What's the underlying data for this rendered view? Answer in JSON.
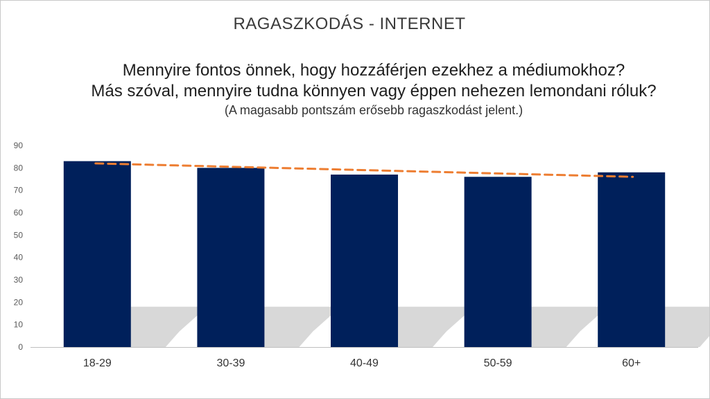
{
  "chart_data": {
    "type": "bar",
    "title": "RAGASZKODÁS - INTERNET",
    "subtitle_lines": [
      "Mennyire fontos önnek, hogy hozzáférjen ezekhez a médiumokhoz?",
      "Más szóval, mennyire tudna könnyen vagy éppen nehezen lemondani róluk?"
    ],
    "note": "(A magasabb pontszám erősebb ragaszkodást jelent.)",
    "categories": [
      "18-29",
      "30-39",
      "40-49",
      "50-59",
      "60+"
    ],
    "values": [
      83,
      80,
      77,
      76,
      78
    ],
    "trendline": {
      "style": "dashed",
      "start": 82,
      "end": 76
    },
    "ylim": [
      0,
      90
    ],
    "yticks": [
      "0",
      "10",
      "20",
      "30",
      "40",
      "50",
      "60",
      "70",
      "80",
      "90"
    ],
    "grid": false,
    "legend": "none",
    "colors": {
      "bar": "#00205b",
      "trend": "#ed7d31",
      "shadow": "#c8c8c8",
      "axis": "#bfbfbf"
    }
  }
}
